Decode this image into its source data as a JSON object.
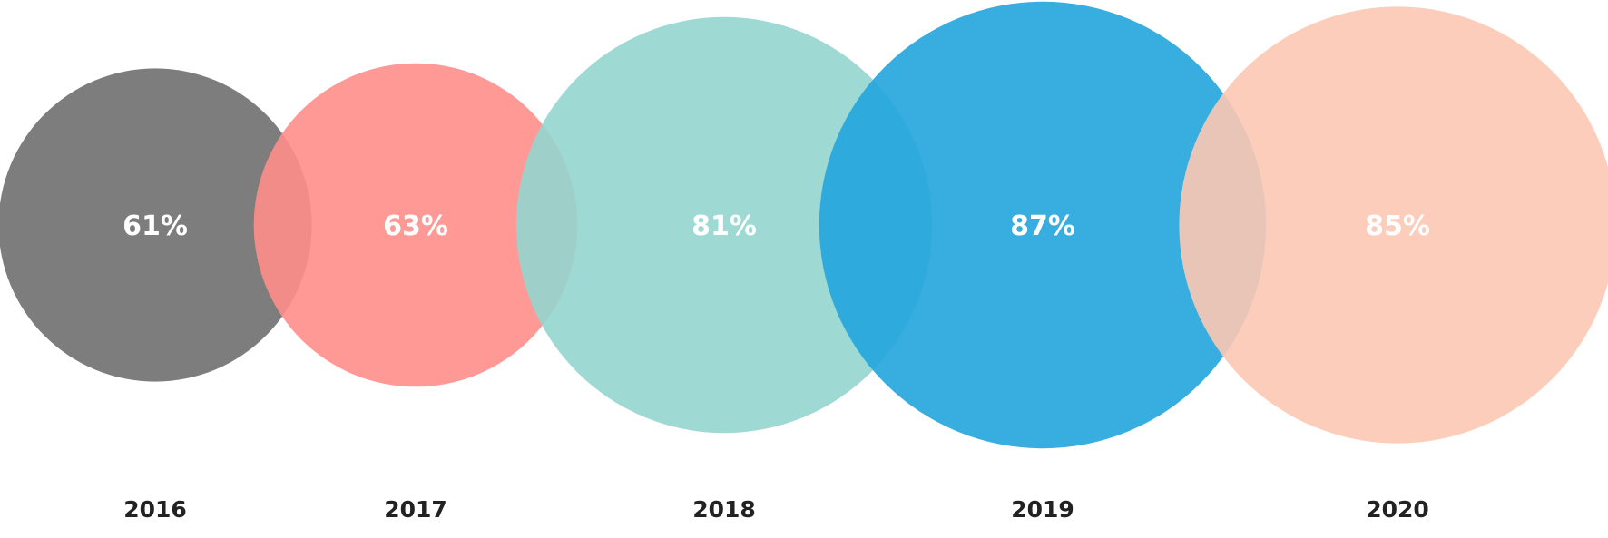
{
  "chart_data": {
    "type": "bubble",
    "categories": [
      "2016",
      "2017",
      "2018",
      "2019",
      "2020"
    ],
    "values": [
      61,
      63,
      81,
      87,
      85
    ],
    "value_labels": [
      "61%",
      "63%",
      "81%",
      "87%",
      "85%"
    ],
    "unit": "%",
    "colors": [
      "#6f6f6f",
      "#ff8e89",
      "#94d5ce",
      "#22a4dd",
      "#fcc8b2"
    ],
    "title": "",
    "xlabel": "",
    "ylabel": ""
  }
}
